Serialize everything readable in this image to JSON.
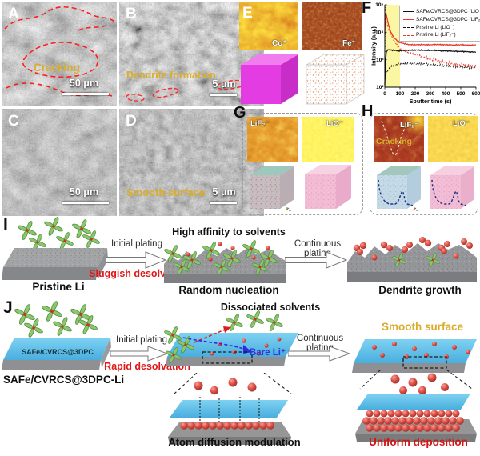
{
  "figure": {
    "panels": {
      "a": {
        "label": "A",
        "annotation": "Cracking",
        "scalebar": "50 μm"
      },
      "b": {
        "label": "B",
        "annotation": "Dendrite formation",
        "scalebar": "5 μm"
      },
      "c": {
        "label": "C",
        "scalebar": "50 μm"
      },
      "d": {
        "label": "D",
        "annotation": "Smooth surface",
        "scalebar": "5 μm"
      },
      "e": {
        "label": "E",
        "map1": "Co⁺",
        "map2": "Fe⁺"
      },
      "f": {
        "label": "F"
      },
      "g": {
        "label": "G",
        "map1": "LiF₂⁻",
        "map2": "LiO⁻"
      },
      "h": {
        "label": "H",
        "map1": "LiF₂⁻",
        "map2": "LiO⁻",
        "annotation": "Cracking"
      },
      "i": {
        "label": "I",
        "note": "High affinity to solvents",
        "arrow1_top": "Initial plating",
        "arrow1_bottom": "Sluggish desolvation",
        "arrow2_top": "Continuous plating",
        "caption1": "Pristine Li",
        "caption2": "Random nucleation",
        "caption3": "Dendrite growth"
      },
      "j": {
        "label": "J",
        "slab_text": "SAFe/CVRCS@3DPC",
        "caption1": "SAFe/CVRCS@3DPC-Li",
        "arrow1_top": "Initial plating",
        "arrow1_bottom": "Rapid desolvation",
        "note_top": "Dissociated solvents",
        "bare_li": "Bare Li⁺",
        "arrow2_top": "Continuous plating",
        "smooth": "Smooth surface",
        "caption2": "Atom diffusion modulation",
        "caption3": "Uniform deposition"
      }
    }
  },
  "chart_data": {
    "type": "line",
    "xlabel": "Sputter time (s)",
    "ylabel": "Intensity (a.u.)",
    "xlim": [
      0,
      600
    ],
    "ylim_log10": [
      2,
      5
    ],
    "xticks": [
      0,
      100,
      200,
      300,
      400,
      500,
      600
    ],
    "yticks": [
      "10²",
      "10³",
      "10⁴",
      "10⁵"
    ],
    "grid": false,
    "legend_position": "top-right",
    "highlight_band_x": [
      0,
      100
    ],
    "highlight_color": "#fbf6a2",
    "series": [
      {
        "name": "SAFe/CVRCS@3DPC (LiO⁻)",
        "color": "#1a1a1a",
        "dash": false,
        "x": [
          0,
          5,
          10,
          20,
          40,
          60,
          80,
          100,
          150,
          200,
          250,
          300,
          350,
          400,
          450,
          500,
          550,
          600
        ],
        "y": [
          120,
          900,
          1900,
          2300,
          2250,
          2200,
          2150,
          2100,
          2200,
          2250,
          2200,
          2200,
          2150,
          2100,
          2050,
          2000,
          1950,
          1900
        ]
      },
      {
        "name": "SAFe/CVRCS@3DPC (LiF₂⁻)",
        "color": "#e8392e",
        "dash": false,
        "x": [
          0,
          4,
          8,
          15,
          25,
          40,
          60,
          80,
          100,
          150,
          200,
          250,
          300,
          350,
          400,
          450,
          500,
          550,
          600
        ],
        "y": [
          9000,
          35000,
          50000,
          32000,
          18000,
          10000,
          6500,
          5000,
          4200,
          3600,
          3500,
          3550,
          3500,
          3600,
          3500,
          3450,
          3500,
          3400,
          3450
        ]
      },
      {
        "name": "Pristine Li (LiO⁻)",
        "color": "#1a1a1a",
        "dash": true,
        "x": [
          0,
          10,
          30,
          60,
          100,
          150,
          200,
          250,
          300,
          350,
          400,
          450,
          500,
          550,
          600
        ],
        "y": [
          260,
          340,
          480,
          620,
          690,
          720,
          700,
          710,
          650,
          620,
          600,
          570,
          550,
          530,
          510
        ]
      },
      {
        "name": "Pristine Li (LiF₂⁻)",
        "color": "#e8392e",
        "dash": true,
        "x": [
          0,
          5,
          15,
          30,
          60,
          100,
          150,
          200,
          250,
          300,
          350,
          400,
          450,
          500,
          550,
          600
        ],
        "y": [
          15000,
          28000,
          20000,
          11000,
          4800,
          2500,
          1800,
          1500,
          1250,
          1050,
          900,
          800,
          700,
          650,
          600,
          560
        ]
      }
    ]
  },
  "colors": {
    "accent_red": "#e8392e",
    "gold_annotation": "#d9ad2b",
    "scaffold_blue": "#55bee9",
    "bare_li_blue": "#3434d8",
    "highlight_band": "#fbf6a2",
    "magenta_cube": "#e23ce2",
    "pink_cube": "#f2bdd4"
  }
}
